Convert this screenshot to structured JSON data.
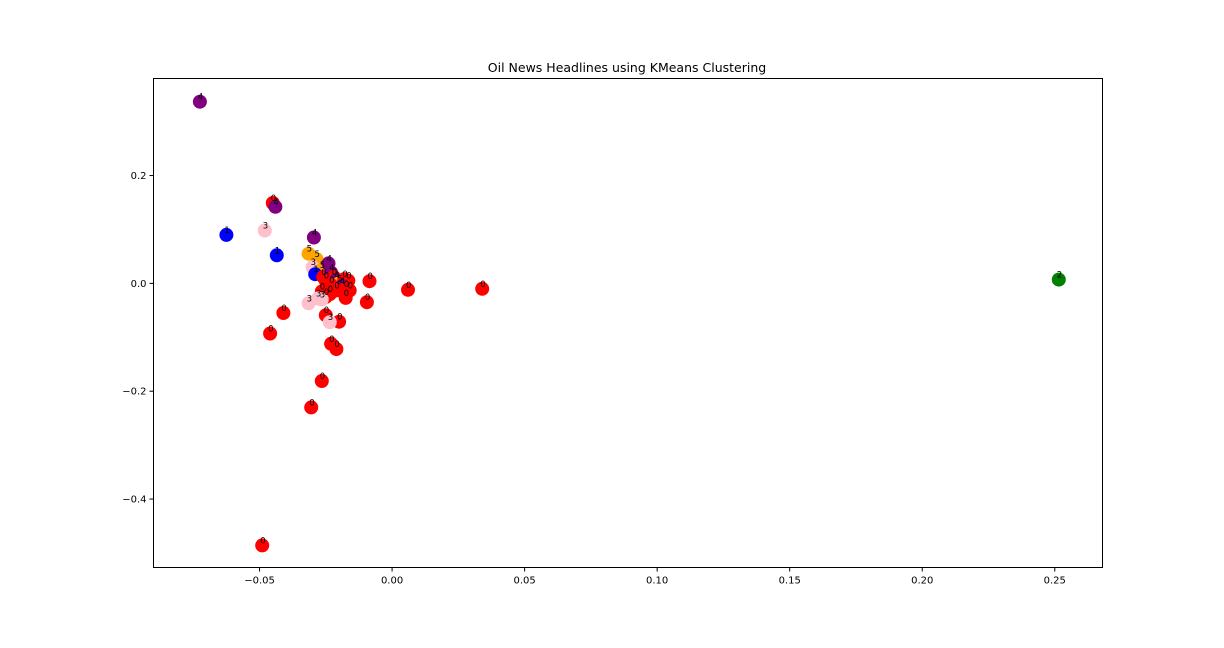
{
  "chart_data": {
    "type": "scatter",
    "title": "Oil News Headlines using KMeans Clustering",
    "xlabel": "",
    "ylabel": "",
    "xlim": [
      -0.09,
      0.268
    ],
    "ylim": [
      -0.527,
      0.38
    ],
    "x_ticks": [
      {
        "value": -0.05,
        "label": "−0.05"
      },
      {
        "value": 0.0,
        "label": "0.00"
      },
      {
        "value": 0.05,
        "label": "0.05"
      },
      {
        "value": 0.1,
        "label": "0.10"
      },
      {
        "value": 0.15,
        "label": "0.15"
      },
      {
        "value": 0.2,
        "label": "0.20"
      },
      {
        "value": 0.25,
        "label": "0.25"
      }
    ],
    "y_ticks": [
      {
        "value": 0.2,
        "label": "0.2"
      },
      {
        "value": 0.0,
        "label": "0.0"
      },
      {
        "value": -0.2,
        "label": "−0.2"
      },
      {
        "value": -0.4,
        "label": "−0.4"
      }
    ],
    "grid": false,
    "cluster_colors": {
      "0": "#ff0000",
      "1": "#0000ff",
      "2": "#008000",
      "3": "#ffc0cb",
      "4": "#800080",
      "5": "#ffa500"
    },
    "points": [
      {
        "x": -0.0725,
        "y": 0.337,
        "c": 4
      },
      {
        "x": -0.0625,
        "y": 0.09,
        "c": 1
      },
      {
        "x": -0.0435,
        "y": 0.052,
        "c": 1
      },
      {
        "x": -0.048,
        "y": 0.098,
        "c": 3
      },
      {
        "x": -0.045,
        "y": 0.149,
        "c": 0
      },
      {
        "x": -0.044,
        "y": 0.142,
        "c": 4
      },
      {
        "x": -0.0295,
        "y": 0.085,
        "c": 4
      },
      {
        "x": -0.0315,
        "y": 0.055,
        "c": 5
      },
      {
        "x": -0.0285,
        "y": 0.045,
        "c": 5
      },
      {
        "x": -0.03,
        "y": 0.03,
        "c": 3
      },
      {
        "x": -0.0265,
        "y": 0.025,
        "c": 5
      },
      {
        "x": -0.029,
        "y": 0.017,
        "c": 1
      },
      {
        "x": -0.026,
        "y": 0.012,
        "c": 0
      },
      {
        "x": -0.024,
        "y": 0.037,
        "c": 4
      },
      {
        "x": -0.023,
        "y": 0.02,
        "c": 4
      },
      {
        "x": -0.022,
        "y": 0.012,
        "c": 0
      },
      {
        "x": -0.025,
        "y": 0.005,
        "c": 0
      },
      {
        "x": -0.021,
        "y": 0.006,
        "c": 4
      },
      {
        "x": -0.02,
        "y": 0.0,
        "c": 5
      },
      {
        "x": -0.018,
        "y": 0.008,
        "c": 0
      },
      {
        "x": -0.0165,
        "y": 0.005,
        "c": 0
      },
      {
        "x": -0.019,
        "y": -0.005,
        "c": 4
      },
      {
        "x": -0.0175,
        "y": -0.01,
        "c": 0
      },
      {
        "x": -0.016,
        "y": -0.013,
        "c": 0
      },
      {
        "x": -0.021,
        "y": -0.013,
        "c": 0
      },
      {
        "x": -0.023,
        "y": -0.003,
        "c": 0
      },
      {
        "x": -0.0235,
        "y": -0.02,
        "c": 0
      },
      {
        "x": -0.025,
        "y": -0.025,
        "c": 0
      },
      {
        "x": -0.0265,
        "y": -0.015,
        "c": 0
      },
      {
        "x": -0.028,
        "y": -0.028,
        "c": 3
      },
      {
        "x": -0.0315,
        "y": -0.037,
        "c": 3
      },
      {
        "x": -0.0265,
        "y": -0.03,
        "c": 3
      },
      {
        "x": -0.0175,
        "y": -0.027,
        "c": 0
      },
      {
        "x": -0.0085,
        "y": 0.004,
        "c": 0
      },
      {
        "x": -0.0095,
        "y": -0.035,
        "c": 0
      },
      {
        "x": 0.006,
        "y": -0.012,
        "c": 0
      },
      {
        "x": 0.034,
        "y": -0.01,
        "c": 0
      },
      {
        "x": -0.041,
        "y": -0.055,
        "c": 0
      },
      {
        "x": -0.046,
        "y": -0.093,
        "c": 0
      },
      {
        "x": -0.025,
        "y": -0.059,
        "c": 0
      },
      {
        "x": -0.02,
        "y": -0.071,
        "c": 0
      },
      {
        "x": -0.0235,
        "y": -0.072,
        "c": 3
      },
      {
        "x": -0.023,
        "y": -0.112,
        "c": 0
      },
      {
        "x": -0.021,
        "y": -0.122,
        "c": 0
      },
      {
        "x": -0.0265,
        "y": -0.181,
        "c": 0
      },
      {
        "x": -0.0305,
        "y": -0.23,
        "c": 0
      },
      {
        "x": -0.049,
        "y": -0.486,
        "c": 0
      },
      {
        "x": 0.2515,
        "y": 0.007,
        "c": 2
      }
    ]
  }
}
